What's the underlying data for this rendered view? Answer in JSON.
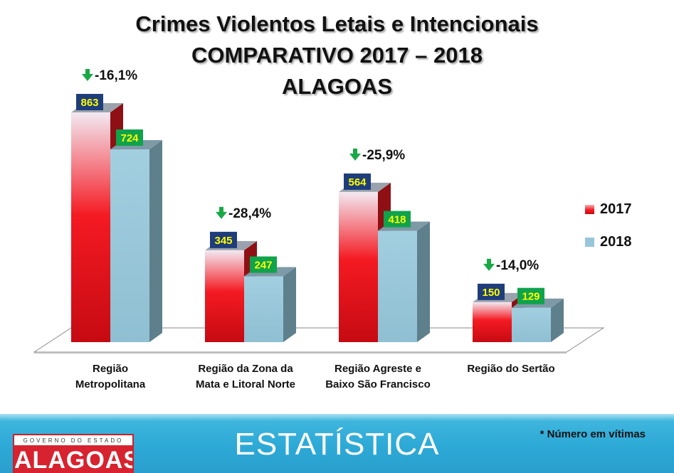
{
  "chart_data": {
    "type": "bar",
    "title_lines": [
      "Crimes Violentos Letais e Intencionais",
      "COMPARATIVO 2017 – 2018",
      "ALAGOAS"
    ],
    "categories": [
      [
        "Região",
        "Metropolitana"
      ],
      [
        "Região da Zona da",
        "Mata e Litoral Norte"
      ],
      [
        "Região Agreste e",
        "Baixo São Francisco"
      ],
      [
        "Região do Sertão"
      ]
    ],
    "series": [
      {
        "name": "2017",
        "values": [
          863,
          345,
          564,
          150
        ],
        "color": "#e8131b"
      },
      {
        "name": "2018",
        "values": [
          724,
          247,
          418,
          129
        ],
        "color": "#97c6d9"
      }
    ],
    "changes": [
      "-16,1%",
      "-28,4%",
      "-25,9%",
      "-14,0%"
    ],
    "legend_position": "right",
    "ylim": [
      0,
      900
    ],
    "value_label_colors": {
      "2017": "#1f3d7a",
      "2018": "#0fa34b",
      "text": "#ffff00"
    },
    "arrow_color": "#18a845"
  },
  "footer": {
    "title": "ESTATÍSTICA",
    "note": "* Número em vítimas",
    "logo_top": "GOVERNO DO ESTADO",
    "logo_name": "ALAGOAS"
  }
}
